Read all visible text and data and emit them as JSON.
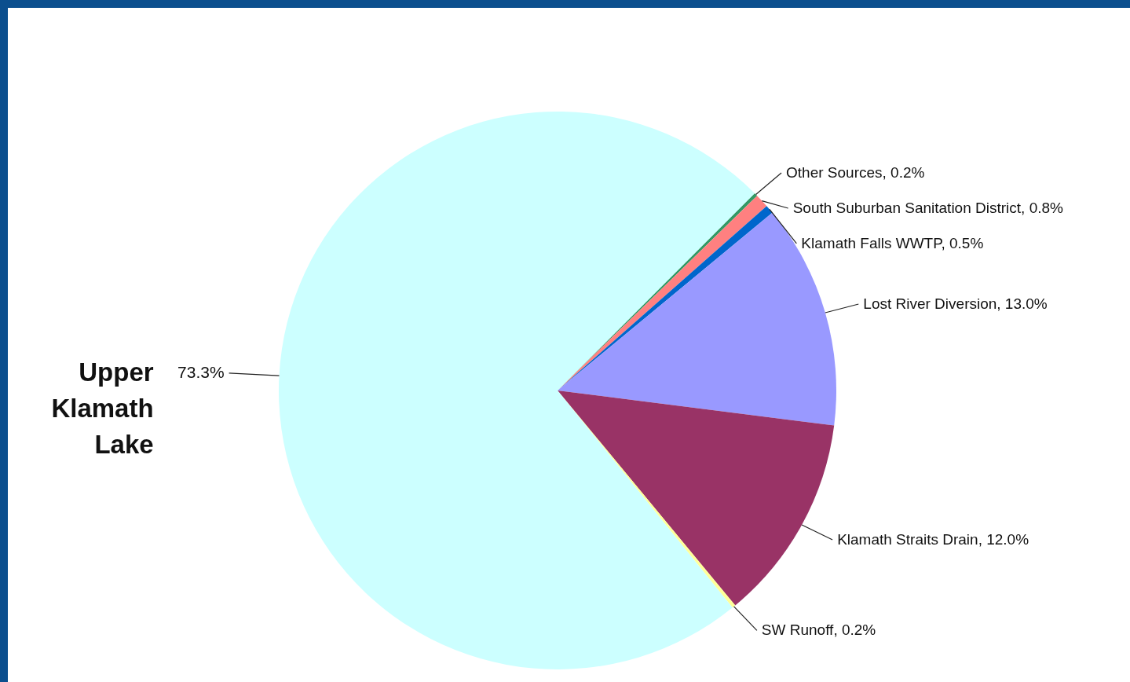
{
  "chart_data": {
    "type": "pie",
    "categories": [
      "Other Sources",
      "South  Suburban Sanitation District",
      "Klamath Falls WWTP",
      "Lost River Diversion",
      "Klamath Straits Drain",
      "SW Runoff",
      "Upper Klamath Lake"
    ],
    "values": [
      0.2,
      0.8,
      0.5,
      13.0,
      12.0,
      0.2,
      73.3
    ],
    "value_labels": [
      "0.2%",
      "0.8%",
      "0.5%",
      "13.0%",
      "12.0%",
      "0.2%",
      "73.3%"
    ],
    "colors": [
      "#339966",
      "#ff8080",
      "#0066cc",
      "#9999ff",
      "#993366",
      "#ffff99",
      "#ccffff"
    ]
  }
}
